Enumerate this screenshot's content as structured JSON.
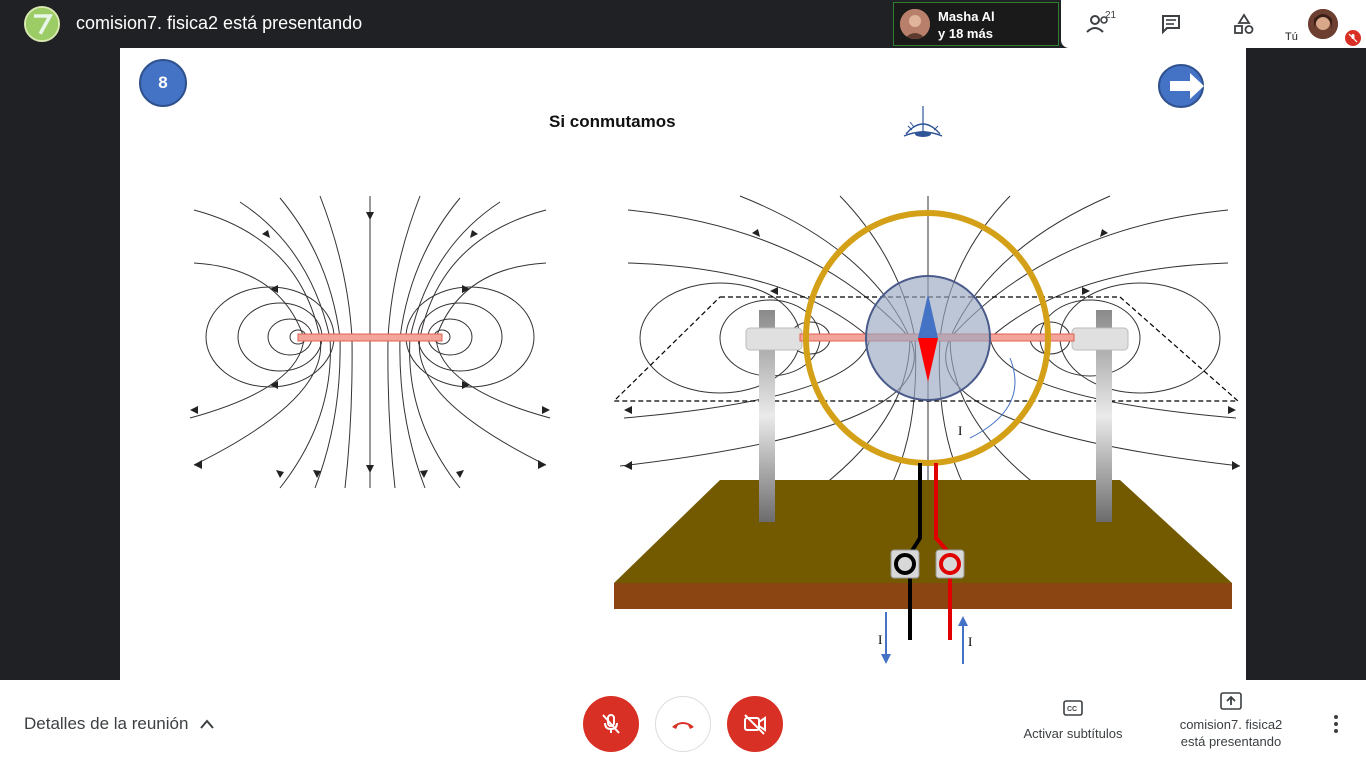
{
  "meeting": {
    "title": "comision7. fisica2 está presentando"
  },
  "participant_tile": {
    "name_line1": "Masha Al",
    "name_line2": "y 18 más"
  },
  "top_actions": {
    "people_count": "21"
  },
  "self": {
    "label": "Tú"
  },
  "slide": {
    "number": "8",
    "title": "Si conmutamos",
    "current_label_left": "I",
    "current_label_right": "I",
    "current_label_loop": "I"
  },
  "bottom": {
    "details_label": "Detalles de la reunión",
    "captions_label": "Activar subtítulos",
    "presenting_line1": "comision7. fisica2",
    "presenting_line2": "está presentando"
  },
  "colors": {
    "bar_dark": "#202124",
    "danger_red": "#d93025",
    "slide_blue": "#4472c4",
    "loop_gold": "#d4a017",
    "wood_top": "#735a00",
    "wood_side": "#8b4513"
  },
  "icons": [
    "presenter-avatar",
    "people-icon",
    "chat-icon",
    "activities-icon",
    "mic-off-icon",
    "hangup-icon",
    "camera-off-icon",
    "captions-icon",
    "present-icon",
    "more-icon",
    "chevron-up-icon"
  ]
}
